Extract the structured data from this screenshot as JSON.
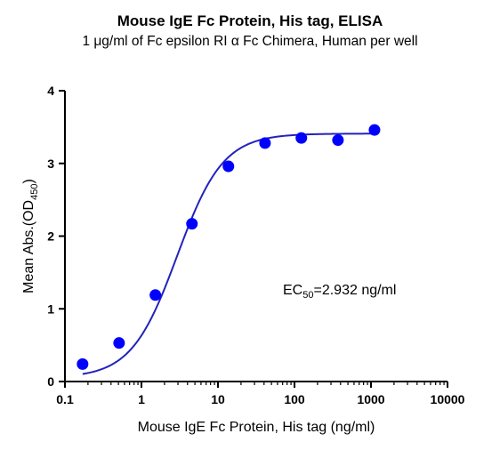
{
  "chart_data": {
    "type": "scatter",
    "title": "Mouse IgE Fc Protein, His tag, ELISA",
    "subtitle": "1 μg/ml of Fc epsilon RI α Fc Chimera, Human per well",
    "xlabel": "Mouse IgE Fc Protein, His tag (ng/ml)",
    "ylabel_main": "Mean Abs.(OD",
    "ylabel_sub": "450",
    "ylabel_end": ")",
    "x_scale": "log",
    "xlim": [
      0.1,
      10000
    ],
    "ylim": [
      0,
      4
    ],
    "x_ticks": [
      {
        "value": 0.1,
        "label": "0.1"
      },
      {
        "value": 1,
        "label": "1"
      },
      {
        "value": 10,
        "label": "10"
      },
      {
        "value": 100,
        "label": "100"
      },
      {
        "value": 1000,
        "label": "1000"
      },
      {
        "value": 10000,
        "label": "10000"
      }
    ],
    "y_ticks": [
      {
        "value": 0,
        "label": "0"
      },
      {
        "value": 1,
        "label": "1"
      },
      {
        "value": 2,
        "label": "2"
      },
      {
        "value": 3,
        "label": "3"
      },
      {
        "value": 4,
        "label": "4"
      }
    ],
    "points": [
      {
        "x": 0.17,
        "y": 0.24
      },
      {
        "x": 0.51,
        "y": 0.53
      },
      {
        "x": 1.52,
        "y": 1.19
      },
      {
        "x": 4.57,
        "y": 2.17
      },
      {
        "x": 13.7,
        "y": 2.96
      },
      {
        "x": 41.2,
        "y": 3.28
      },
      {
        "x": 123,
        "y": 3.35
      },
      {
        "x": 370,
        "y": 3.32
      },
      {
        "x": 1111,
        "y": 3.46
      }
    ],
    "fit": {
      "bottom": 0.05,
      "top": 3.41,
      "ec50": 2.932,
      "hill": 1.45,
      "x_from": 0.17,
      "x_to": 1111
    },
    "annotation": {
      "prefix": "EC",
      "sub": "50",
      "suffix": "=2.932 ng/ml"
    },
    "color": "#0000ff",
    "curve_color": "#2222bb",
    "grid": false
  }
}
